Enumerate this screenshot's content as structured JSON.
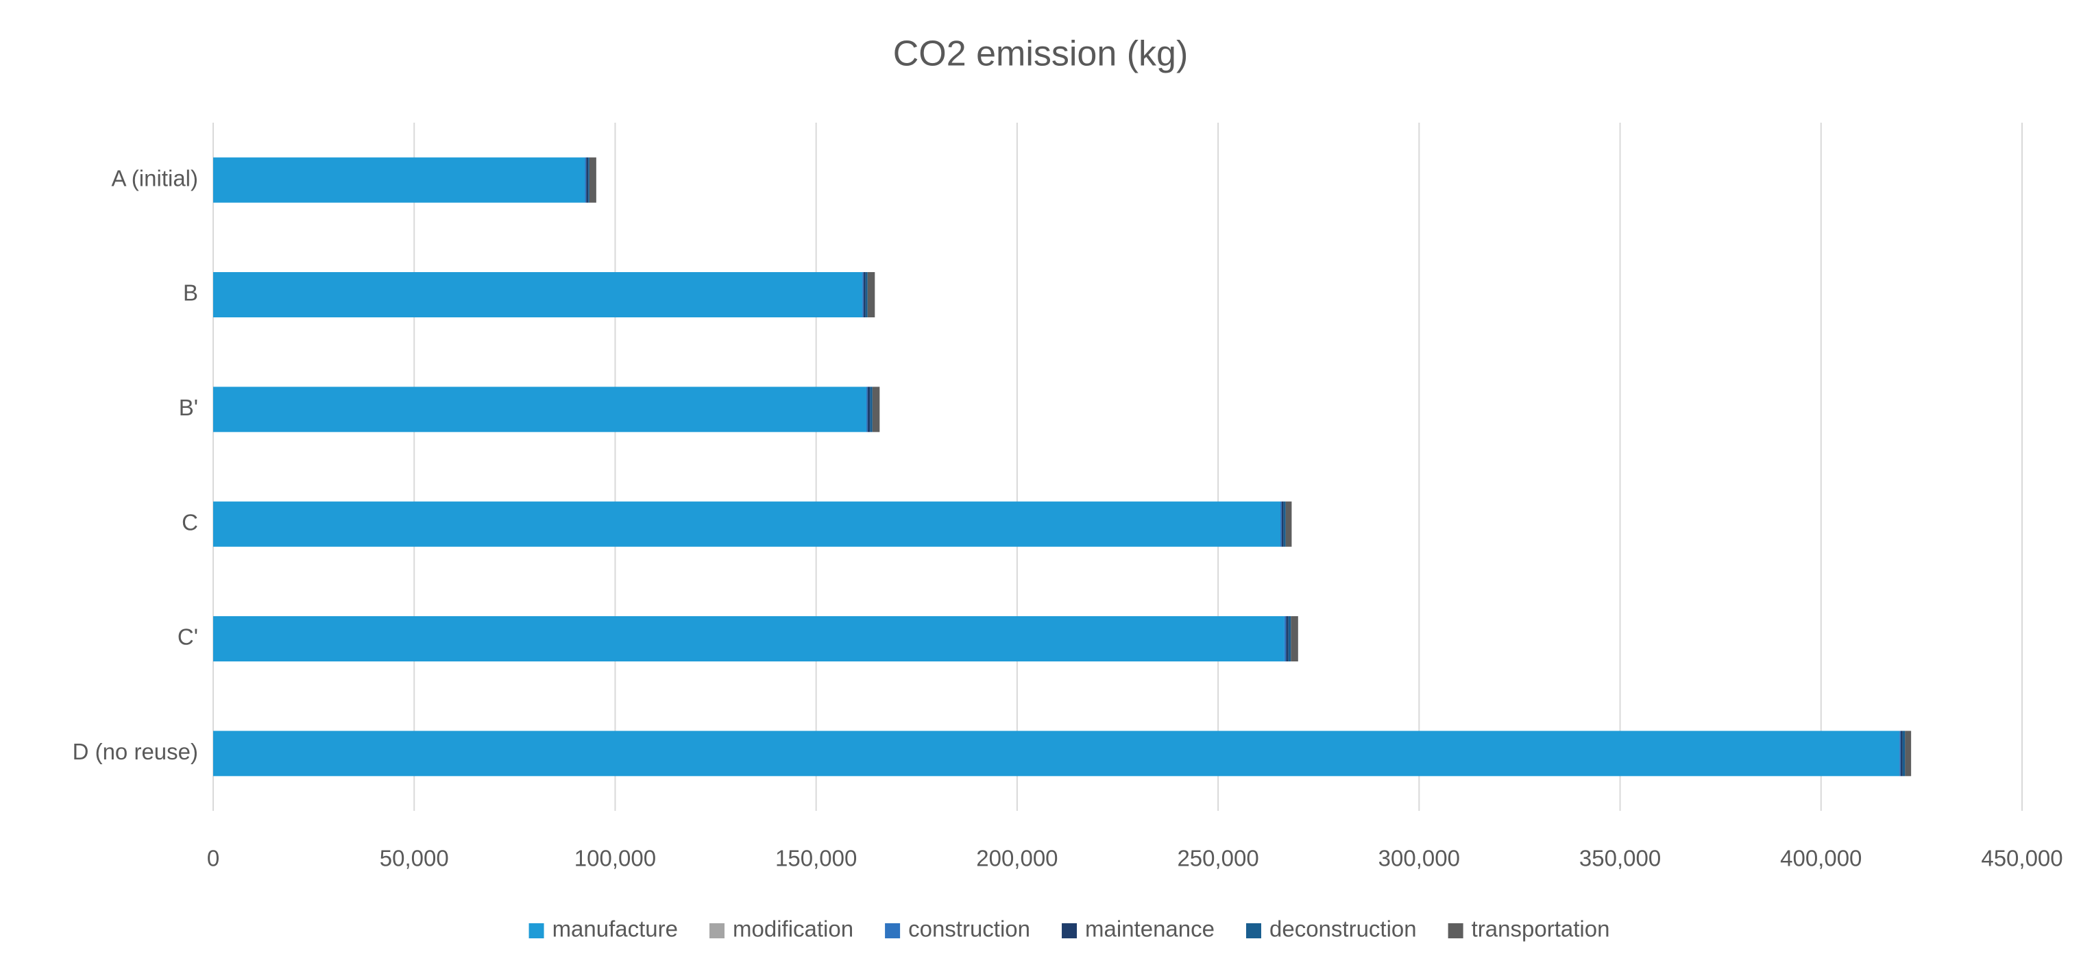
{
  "chart_data": {
    "type": "stacked-bar-horizontal",
    "title": "CO2 emission (kg)",
    "categories": [
      "A (initial)",
      "B",
      "B'",
      "C",
      "C'",
      "D (no reuse)"
    ],
    "series": [
      {
        "name": "manufacture",
        "color": "#1f9bd7",
        "values": [
          92500,
          161500,
          162500,
          265500,
          266500,
          419500
        ]
      },
      {
        "name": "modification",
        "color": "#a5a5a5",
        "values": [
          0,
          0,
          0,
          0,
          0,
          0
        ]
      },
      {
        "name": "construction",
        "color": "#2f74c0",
        "values": [
          300,
          300,
          300,
          300,
          400,
          300
        ]
      },
      {
        "name": "maintenance",
        "color": "#1f3d6b",
        "values": [
          500,
          500,
          600,
          500,
          600,
          500
        ]
      },
      {
        "name": "deconstruction",
        "color": "#1a5e8f",
        "values": [
          300,
          500,
          600,
          500,
          600,
          600
        ]
      },
      {
        "name": "transportation",
        "color": "#5e5e5e",
        "values": [
          1700,
          1800,
          1800,
          1500,
          1800,
          1500
        ]
      }
    ],
    "xlim": [
      0,
      450000
    ],
    "xticks": [
      0,
      {
        "value": 50000,
        "label": "50,000"
      },
      {
        "value": 100000,
        "label": "100,000"
      },
      {
        "value": 150000,
        "label": "150,000"
      },
      {
        "value": 200000,
        "label": "200,000"
      },
      {
        "value": 250000,
        "label": "250,000"
      },
      {
        "value": 300000,
        "label": "300,000"
      },
      {
        "value": 350000,
        "label": "350,000"
      },
      {
        "value": 400000,
        "label": "400,000"
      },
      {
        "value": 450000,
        "label": "450,000"
      }
    ],
    "grid": true,
    "legend": "bottom"
  }
}
